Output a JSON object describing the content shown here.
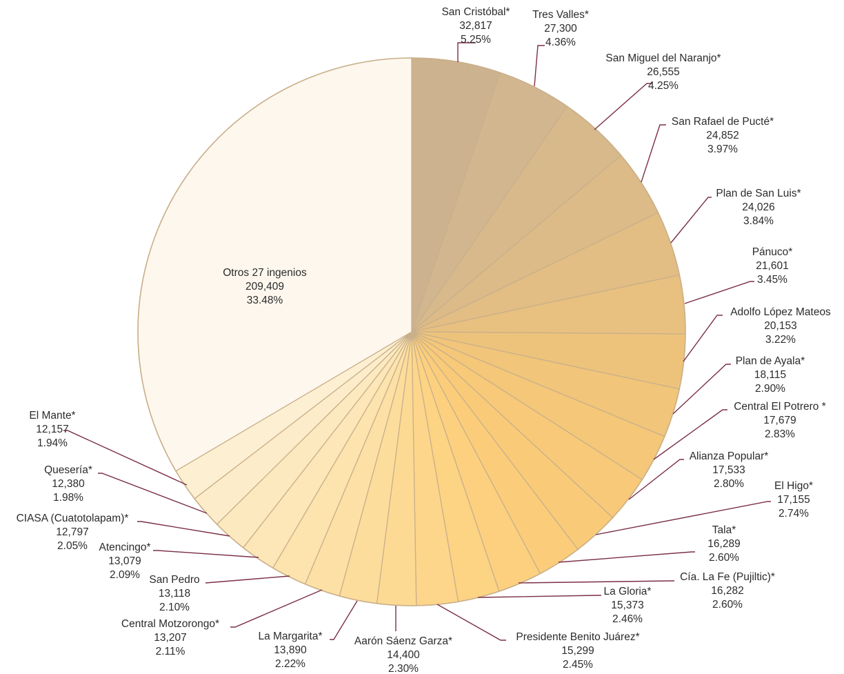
{
  "chart_data": {
    "type": "pie",
    "total_note": "",
    "slices": [
      {
        "name": "San Cristóbal*",
        "value": 32817,
        "pct": "5.25%",
        "value_label": "32,817",
        "color": "#cdb28f"
      },
      {
        "name": "Tres Valles*",
        "value": 27300,
        "pct": "4.36%",
        "value_label": "27,300",
        "color": "#d2b690"
      },
      {
        "name": "San Miguel del Naranjo*",
        "value": 26555,
        "pct": "4.25%",
        "value_label": "26,555",
        "color": "#d7b98c"
      },
      {
        "name": "San Rafael de Pucté*",
        "value": 24852,
        "pct": "3.97%",
        "value_label": "24,852",
        "color": "#dcbb88"
      },
      {
        "name": "Plan de San Luis*",
        "value": 24026,
        "pct": "3.84%",
        "value_label": "24,026",
        "color": "#e2bd84"
      },
      {
        "name": "Pánuco*",
        "value": 21601,
        "pct": "3.45%",
        "value_label": "21,601",
        "color": "#e8c07f"
      },
      {
        "name": "Adolfo López Mateos",
        "value": 20153,
        "pct": "3.22%",
        "value_label": "20,153",
        "color": "#edc37c"
      },
      {
        "name": "Plan de Ayala*",
        "value": 18115,
        "pct": "2.90%",
        "value_label": "18,115",
        "color": "#f1c57a"
      },
      {
        "name": "Central El Potrero *",
        "value": 17679,
        "pct": "2.83%",
        "value_label": "17,679",
        "color": "#f4c779"
      },
      {
        "name": "Alianza Popular*",
        "value": 17533,
        "pct": "2.80%",
        "value_label": "17,533",
        "color": "#f7c978"
      },
      {
        "name": "El Higo*",
        "value": 17155,
        "pct": "2.74%",
        "value_label": "17,155",
        "color": "#f9cb78"
      },
      {
        "name": "Tala*",
        "value": 16289,
        "pct": "2.60%",
        "value_label": "16,289",
        "color": "#fbcd7a"
      },
      {
        "name": "Cía. La Fe (Pujiltic)*",
        "value": 16282,
        "pct": "2.60%",
        "value_label": "16,282",
        "color": "#fcd07e"
      },
      {
        "name": "La Gloria*",
        "value": 15373,
        "pct": "2.46%",
        "value_label": "15,373",
        "color": "#fdd384"
      },
      {
        "name": "Presidente Benito Juárez*",
        "value": 15299,
        "pct": "2.45%",
        "value_label": "15,299",
        "color": "#fdd68b"
      },
      {
        "name": "Aarón Sáenz Garza*",
        "value": 14400,
        "pct": "2.30%",
        "value_label": "14,400",
        "color": "#fdda93"
      },
      {
        "name": "La Margarita*",
        "value": 13890,
        "pct": "2.22%",
        "value_label": "13,890",
        "color": "#fddd9c"
      },
      {
        "name": "Central Motzorongo*",
        "value": 13207,
        "pct": "2.11%",
        "value_label": "13,207",
        "color": "#fde0a5"
      },
      {
        "name": "San Pedro",
        "value": 13118,
        "pct": "2.10%",
        "value_label": "13,118",
        "color": "#fde3ae"
      },
      {
        "name": "Atencingo*",
        "value": 13079,
        "pct": "2.09%",
        "value_label": "13,079",
        "color": "#fde6b7"
      },
      {
        "name": "CIASA (Cuatotolapam)*",
        "value": 12797,
        "pct": "2.05%",
        "value_label": "12,797",
        "color": "#fde9c0"
      },
      {
        "name": "Quesería*",
        "value": 12380,
        "pct": "1.98%",
        "value_label": "12,380",
        "color": "#fdecc9"
      },
      {
        "name": "El Mante*",
        "value": 12157,
        "pct": "1.94%",
        "value_label": "12,157",
        "color": "#fdefd2"
      },
      {
        "name": "Otros 27 ingenios",
        "value": 209409,
        "pct": "33.48%",
        "value_label": "209,409",
        "color": "#fef7ee"
      }
    ]
  }
}
